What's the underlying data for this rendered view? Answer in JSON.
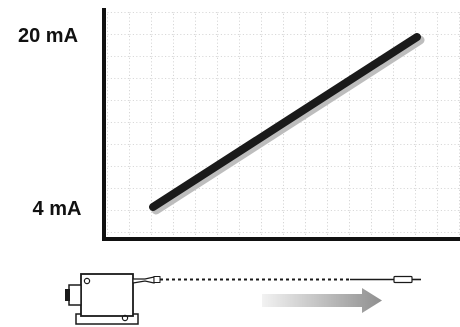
{
  "chart_data": {
    "type": "line",
    "y_labels": [
      "20 mA",
      "4 mA"
    ],
    "points": [
      {
        "x": 0,
        "y": 4
      },
      {
        "x": 1,
        "y": 20
      }
    ],
    "ylim": [
      4,
      20
    ],
    "grid": true,
    "line_color": "#1a1a1a",
    "shadow_color": "#bdbdbd"
  },
  "diagram": {
    "sensor_color": "#ffffff",
    "outline_color": "#1a1a1a",
    "cable_color": "#1a1a1a",
    "arrow_gradient": [
      "#f2f2f2",
      "#8f8f8f"
    ],
    "icons": [
      "sensor-housing-icon",
      "connector-icon",
      "probe-tip-icon",
      "direction-arrow-icon"
    ]
  }
}
